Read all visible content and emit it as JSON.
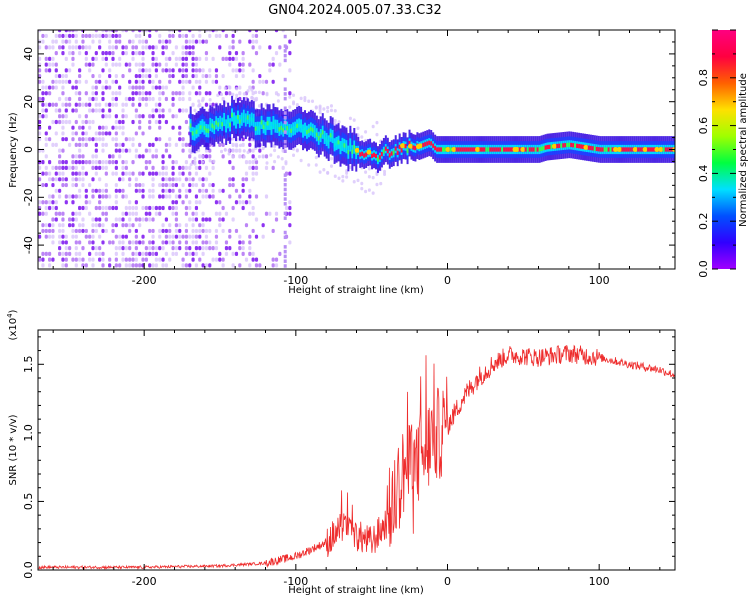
{
  "title": "GN04.2024.005.07.33.C32",
  "chart_data": [
    {
      "type": "heatmap",
      "title": "GN04.2024.005.07.33.C32",
      "xlabel": "Height of straight line (km)",
      "ylabel": "Frequency (Hz)",
      "xlim": [
        -270,
        150
      ],
      "ylim": [
        -50,
        50
      ],
      "xticks": [
        -200,
        -100,
        0,
        100
      ],
      "yticks": [
        -40,
        -20,
        0,
        20,
        40
      ],
      "colorbar": {
        "label": "Normalized spectral amplitude",
        "range": [
          0,
          1
        ],
        "ticks": [
          "0.0",
          "0.2",
          "0.4",
          "0.6",
          "0.8"
        ],
        "colormap": [
          "#a000ff",
          "#3000ff",
          "#0050ff",
          "#00e0ff",
          "#00ff40",
          "#a0ff00",
          "#ffe000",
          "#ff6000",
          "#ff0040",
          "#ff0080"
        ]
      },
      "ridge": {
        "x": [
          -165,
          -150,
          -140,
          -130,
          -120,
          -110,
          -100,
          -90,
          -80,
          -70,
          -60,
          -50,
          -40,
          -30,
          -20,
          -12,
          -8,
          0,
          20,
          40,
          60,
          65,
          80,
          90,
          100,
          120,
          150
        ],
        "y": [
          8,
          11,
          13,
          11,
          10,
          9,
          10,
          7,
          5,
          1,
          -1,
          -3,
          -1,
          1,
          1,
          3,
          0,
          0,
          0,
          0,
          0,
          1,
          2,
          1,
          0,
          0,
          0
        ]
      }
    },
    {
      "type": "line",
      "xlabel": "Height of straight line (km)",
      "ylabel": "SNR (10 * v/v)",
      "yscale_label": "(x10",
      "yscale_exp": "4",
      "yscale_close": ")",
      "xlim": [
        -270,
        150
      ],
      "ylim": [
        0,
        1.75
      ],
      "xticks": [
        -200,
        -100,
        0,
        100
      ],
      "yticks": [
        "0.0",
        "0.5",
        "1.0",
        "1.5"
      ],
      "color": "#ee2c2c",
      "envelope": {
        "x": [
          -270,
          -200,
          -150,
          -120,
          -100,
          -80,
          -70,
          -60,
          -50,
          -40,
          -30,
          -20,
          -10,
          0,
          10,
          20,
          30,
          40,
          60,
          80,
          100,
          120,
          140,
          150
        ],
        "y": [
          0.02,
          0.02,
          0.03,
          0.05,
          0.1,
          0.2,
          0.3,
          0.25,
          0.2,
          0.35,
          0.7,
          0.8,
          0.95,
          1.05,
          1.25,
          1.4,
          1.5,
          1.57,
          1.55,
          1.58,
          1.55,
          1.5,
          1.46,
          1.42
        ]
      }
    }
  ]
}
